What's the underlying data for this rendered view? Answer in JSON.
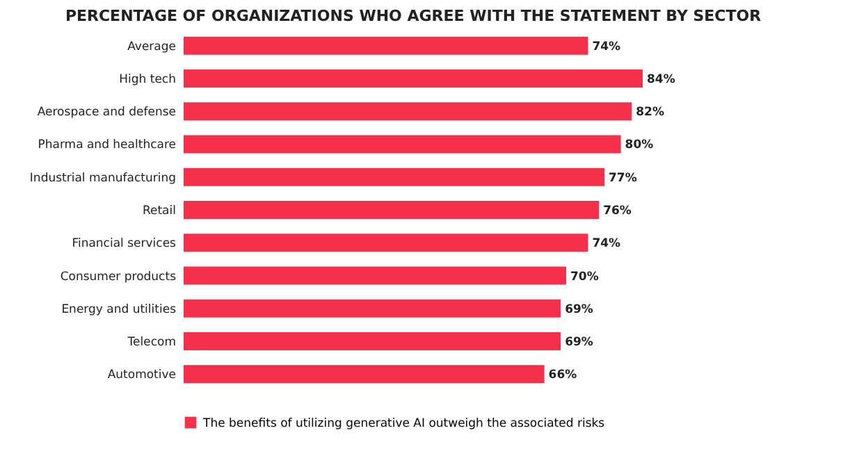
{
  "chart_data": {
    "type": "bar",
    "orientation": "horizontal",
    "title": "PERCENTAGE OF ORGANIZATIONS WHO AGREE WITH THE STATEMENT BY SECTOR",
    "categories": [
      "Average",
      "High tech",
      "Aerospace and defense",
      "Pharma and healthcare",
      "Industrial manufacturing",
      "Retail",
      "Financial services",
      "Consumer products",
      "Energy and utilities",
      "Telecom",
      "Automotive"
    ],
    "series": [
      {
        "name": "The benefits of utilizing generative AI outweigh the associated risks",
        "color": "#f5304a",
        "values": [
          74,
          84,
          82,
          80,
          77,
          76,
          74,
          70,
          69,
          69,
          66
        ],
        "value_labels": [
          "74%",
          "84%",
          "82%",
          "80%",
          "77%",
          "76%",
          "74%",
          "70%",
          "69%",
          "69%",
          "66%"
        ]
      }
    ],
    "tick_labels": "y",
    "legend": "bottom"
  }
}
